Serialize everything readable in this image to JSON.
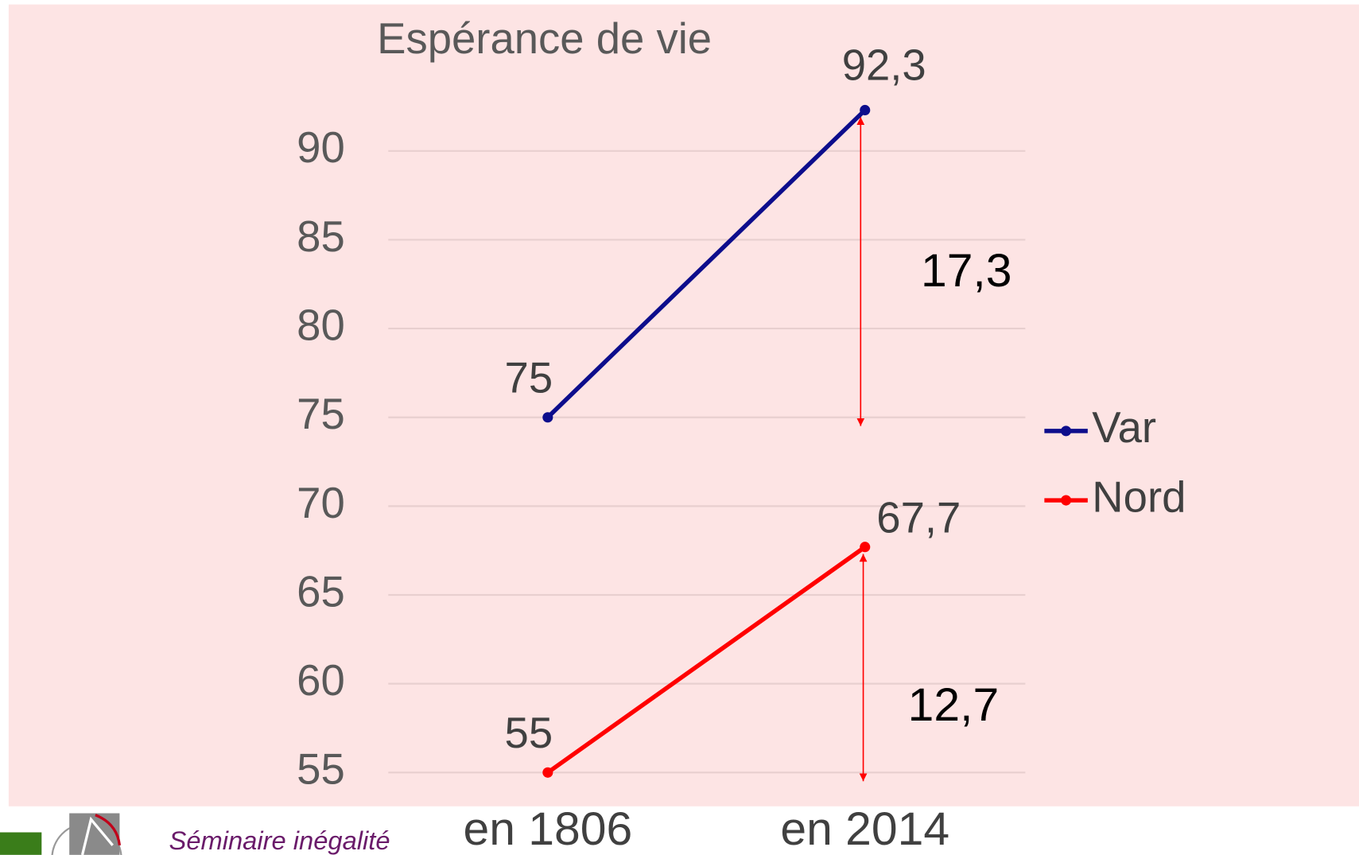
{
  "chart_data": {
    "type": "line",
    "title": "Espérance de vie",
    "categories": [
      "en 1806",
      "en 2014"
    ],
    "series": [
      {
        "name": "Var",
        "color": "#0d0d8c",
        "values": [
          75,
          92.3
        ],
        "value_labels": [
          "75",
          "92,3"
        ]
      },
      {
        "name": "Nord",
        "color": "#ff0000",
        "values": [
          55,
          67.7
        ],
        "value_labels": [
          "55",
          "67,7"
        ]
      }
    ],
    "annotations": [
      "17,3",
      "12,7"
    ],
    "ylim": [
      55,
      95
    ],
    "yticks": [
      55,
      60,
      65,
      70,
      75,
      80,
      85,
      90
    ],
    "grid": true,
    "legend": "right"
  },
  "footer": {
    "text": "Séminaire inégalité"
  }
}
